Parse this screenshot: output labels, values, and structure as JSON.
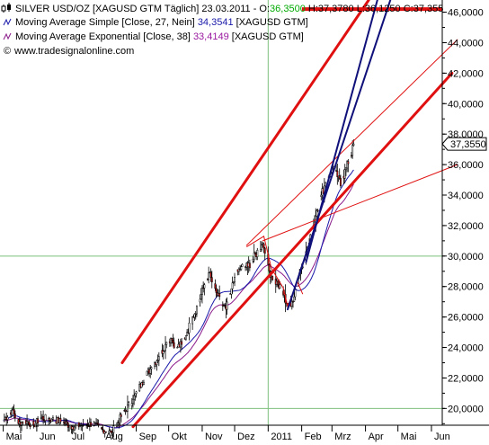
{
  "header": {
    "line1_prefix": "SILVER USD/OZ [XAGUSD GTM  Täglich] 23.03.2011 - O:",
    "open": "36,3500",
    "high_label": " H:",
    "high": "37,3780",
    "low_label": " L:",
    "low": "36,1250",
    "close_label": " C:",
    "close": "37,355",
    "sma_label": "Moving Average Simple [Close, 27, Nein]",
    "sma_value": "34,3541",
    "sma_suffix": "[XAGUSD GTM]",
    "ema_label": "Moving Average Exponential [Close, 38]",
    "ema_value": "33,4149",
    "ema_suffix": "[XAGUSD GTM]",
    "source": "www.tradesignalonline.com"
  },
  "colors": {
    "sma": "#1a1aaa",
    "ema": "#8a1a8a",
    "up_candle": "#ffffff",
    "down_candle": "#d21a1a",
    "trend_red": "#e01010",
    "trend_blue": "#10107a",
    "grid": "#7ec07e",
    "open_value": "#00aa00",
    "ema_value": "#9a1aa0"
  },
  "chart_data": {
    "type": "candlestick",
    "title": "SILVER USD/OZ [XAGUSD GTM Täglich]",
    "ylim": [
      18.9,
      46.8
    ],
    "y_ticks": [
      "46,0000",
      "44,0000",
      "42,0000",
      "40,0000",
      "38,0000",
      "36,0000",
      "34,0000",
      "32,0000",
      "30,0000",
      "28,0000",
      "26,0000",
      "24,0000",
      "22,0000",
      "20,0000"
    ],
    "y_tick_values": [
      46,
      44,
      42,
      40,
      38,
      36,
      34,
      32,
      30,
      28,
      26,
      24,
      22,
      20
    ],
    "current_value_label": "37,3550",
    "current_value": 37.355,
    "x_ticks": [
      "Mai",
      "Jun",
      "Jul",
      "Aug",
      "Sep",
      "Okt",
      "Nov",
      "Dez",
      "2011",
      "Feb",
      "Mrz",
      "Apr",
      "Mai",
      "Jun"
    ],
    "x_tick_day": [
      0,
      31,
      61,
      92,
      123,
      153,
      184,
      214,
      245,
      276,
      304,
      335,
      365,
      396
    ],
    "date_axis_start": "2010-05-01",
    "horizontal_line": 46.2,
    "ma_sma_length": 27,
    "ma_ema_length": 38,
    "anchors": [
      [
        0,
        19.2
      ],
      [
        8,
        19.9
      ],
      [
        14,
        19.0
      ],
      [
        20,
        19.2
      ],
      [
        28,
        18.9
      ],
      [
        35,
        19.4
      ],
      [
        45,
        19.3
      ],
      [
        55,
        19.1
      ],
      [
        64,
        18.8
      ],
      [
        72,
        18.9
      ],
      [
        82,
        19.0
      ],
      [
        92,
        18.6
      ],
      [
        100,
        18.4
      ],
      [
        110,
        19.6
      ],
      [
        120,
        20.6
      ],
      [
        128,
        21.7
      ],
      [
        136,
        22.6
      ],
      [
        144,
        23.4
      ],
      [
        150,
        24.2
      ],
      [
        155,
        24.6
      ],
      [
        160,
        24.0
      ],
      [
        165,
        24.2
      ],
      [
        170,
        25.0
      ],
      [
        175,
        26.0
      ],
      [
        180,
        26.8
      ],
      [
        185,
        27.9
      ],
      [
        188,
        28.5
      ],
      [
        190,
        28.9
      ],
      [
        193,
        28.3
      ],
      [
        197,
        27.6
      ],
      [
        202,
        26.8
      ],
      [
        206,
        26.5
      ],
      [
        210,
        27.5
      ],
      [
        214,
        28.6
      ],
      [
        220,
        29.3
      ],
      [
        226,
        29.3
      ],
      [
        231,
        29.8
      ],
      [
        236,
        30.4
      ],
      [
        240,
        30.8
      ],
      [
        243,
        30.3
      ],
      [
        246,
        29.0
      ],
      [
        250,
        28.5
      ],
      [
        254,
        28.1
      ],
      [
        258,
        27.7
      ],
      [
        262,
        26.9
      ],
      [
        266,
        26.7
      ],
      [
        270,
        27.8
      ],
      [
        274,
        28.9
      ],
      [
        278,
        29.8
      ],
      [
        282,
        30.5
      ],
      [
        286,
        31.8
      ],
      [
        290,
        33.0
      ],
      [
        294,
        34.0
      ],
      [
        297,
        34.6
      ],
      [
        300,
        35.2
      ],
      [
        303,
        35.5
      ],
      [
        306,
        36.1
      ],
      [
        309,
        35.2
      ],
      [
        312,
        34.6
      ],
      [
        315,
        35.1
      ],
      [
        318,
        36.2
      ],
      [
        321,
        36.6
      ],
      [
        324,
        37.36
      ]
    ],
    "trend_lines": [
      {
        "color": "red",
        "width": 3,
        "from": [
          110,
          23.0
        ],
        "to": [
          338,
          46.8
        ]
      },
      {
        "color": "red",
        "width": 3,
        "from": [
          120,
          18.8
        ],
        "to": [
          415,
          42.0
        ]
      },
      {
        "color": "red",
        "width": 1,
        "from": [
          225,
          30.7
        ],
        "to": [
          420,
          44.2
        ]
      },
      {
        "color": "red",
        "width": 1,
        "from": [
          240,
          31.0
        ],
        "to": [
          420,
          36.0
        ]
      },
      {
        "color": "blue",
        "width": 2,
        "from": [
          280,
          29.6
        ],
        "to": [
          346,
          46.8
        ]
      },
      {
        "color": "blue",
        "width": 2,
        "from": [
          263,
          26.5
        ],
        "to": [
          358,
          46.8
        ]
      }
    ],
    "pattern_lines": [
      [
        225,
        30.6
      ],
      [
        241,
        31.3
      ],
      [
        248,
        29.2
      ],
      [
        259,
        27.9
      ],
      [
        263,
        26.7
      ],
      [
        272,
        28.3
      ],
      [
        277,
        27.5
      ]
    ]
  }
}
